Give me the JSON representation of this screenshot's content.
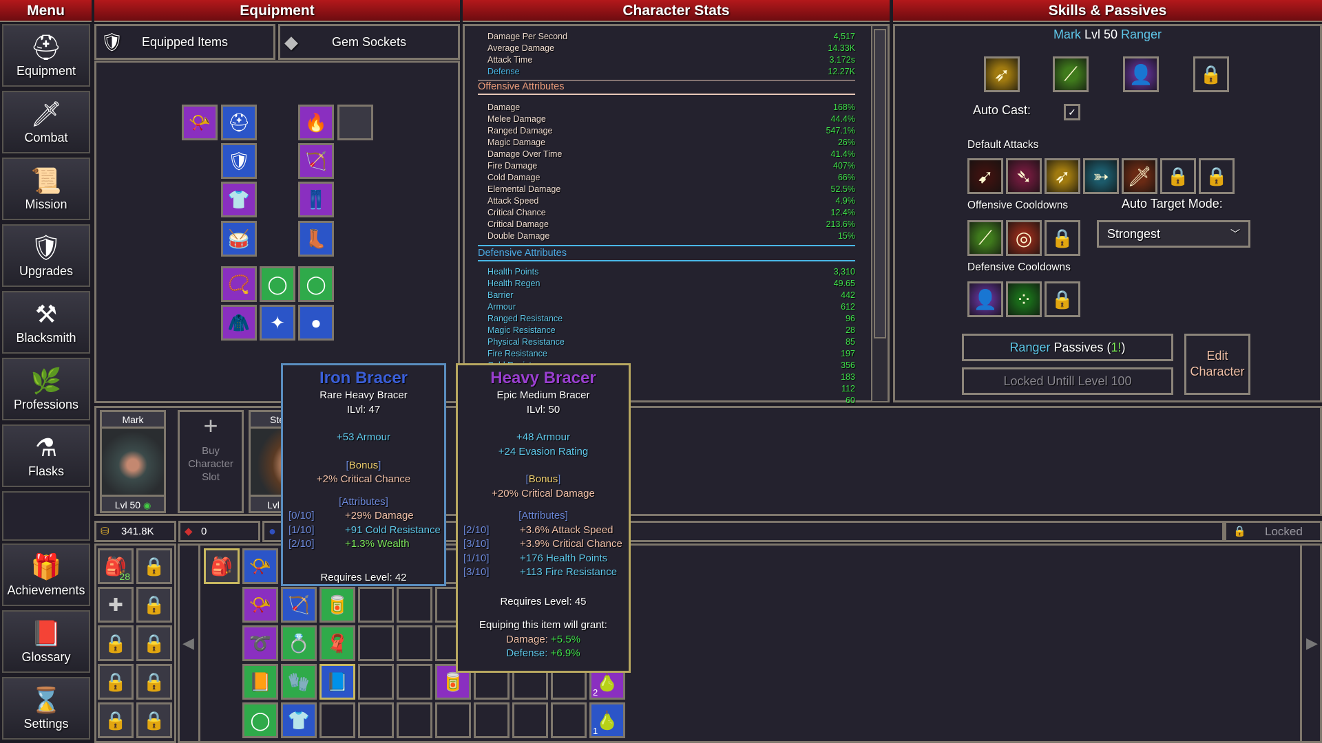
{
  "headers": {
    "menu": "Menu",
    "equipment": "Equipment",
    "stats": "Character Stats",
    "skills": "Skills & Passives"
  },
  "menu": [
    {
      "label": "Equipment",
      "icon": "helmet-icon",
      "glyph": "⛑"
    },
    {
      "label": "Combat",
      "icon": "sword-icon",
      "glyph": "🗡"
    },
    {
      "label": "Mission",
      "icon": "scroll-icon",
      "glyph": "📜"
    },
    {
      "label": "Upgrades",
      "icon": "shield-icon",
      "glyph": "🛡"
    },
    {
      "label": "Blacksmith",
      "icon": "anvil-icon",
      "glyph": "⚒"
    },
    {
      "label": "Professions",
      "icon": "plant-icon",
      "glyph": "🌿"
    },
    {
      "label": "Flasks",
      "icon": "flask-icon",
      "glyph": "⚗"
    },
    {
      "label": "",
      "icon": "empty-slot",
      "glyph": ""
    },
    {
      "label": "Achievements",
      "icon": "chest-icon",
      "glyph": "🎁"
    },
    {
      "label": "Glossary",
      "icon": "book-icon",
      "glyph": "📕"
    },
    {
      "label": "Settings",
      "icon": "hourglass-icon",
      "glyph": "⌛"
    }
  ],
  "tabs": {
    "equipped": "Equipped Items",
    "gems": "Gem Sockets"
  },
  "equipped_slots": [
    {
      "item": "horn-icon",
      "glyph": "📯",
      "rarity": "#8a2fc0"
    },
    {
      "item": "helmet-icon",
      "glyph": "⛑",
      "rarity": "#2b55c8"
    },
    {
      "item": "fire-mask-icon",
      "glyph": "🔥",
      "rarity": "#8a2fc0"
    },
    {
      "item": "empty-gem-slot",
      "glyph": "",
      "rarity": "#3a3944"
    },
    {
      "item": "pauldron-icon",
      "glyph": "🛡",
      "rarity": "#2b55c8"
    },
    {
      "item": "bracer-icon",
      "glyph": "🏹",
      "rarity": "#8a2fc0"
    },
    {
      "item": "chest-armor-icon",
      "glyph": "👕",
      "rarity": "#8a2fc0"
    },
    {
      "item": "pants-icon",
      "glyph": "👖",
      "rarity": "#8a2fc0"
    },
    {
      "item": "belt-icon",
      "glyph": "🥁",
      "rarity": "#2b55c8"
    },
    {
      "item": "boots-icon",
      "glyph": "👢",
      "rarity": "#2b55c8"
    },
    {
      "item": "amulet-icon",
      "glyph": "📿",
      "rarity": "#8a2fc0"
    },
    {
      "item": "ring-icon",
      "glyph": "◯",
      "rarity": "#2faa4a"
    },
    {
      "item": "ring-icon",
      "glyph": "◯",
      "rarity": "#2faa4a"
    },
    {
      "item": "cloak-icon",
      "glyph": "🧥",
      "rarity": "#8a2fc0"
    },
    {
      "item": "compass-icon",
      "glyph": "✦",
      "rarity": "#2b55c8"
    },
    {
      "item": "orb-icon",
      "glyph": "●",
      "rarity": "#2b55c8"
    }
  ],
  "stats": {
    "summary": [
      {
        "label": "Damage Per Second",
        "value": "4,517"
      },
      {
        "label": "Average Damage",
        "value": "14.33K"
      },
      {
        "label": "Attack Time",
        "value": "3.172s"
      },
      {
        "label": "Defense",
        "value": "12.27K"
      }
    ],
    "offensive_title": "Offensive Attributes",
    "offensive": [
      {
        "label": "Damage",
        "value": "168%"
      },
      {
        "label": "Melee Damage",
        "value": "44.4%"
      },
      {
        "label": "Ranged Damage",
        "value": "547.1%"
      },
      {
        "label": "Magic Damage",
        "value": "26%"
      },
      {
        "label": "Damage Over Time",
        "value": "41.4%"
      },
      {
        "label": "Fire Damage",
        "value": "407%"
      },
      {
        "label": "Cold Damage",
        "value": "66%"
      },
      {
        "label": "Elemental Damage",
        "value": "52.5%"
      },
      {
        "label": "Attack Speed",
        "value": "4.9%"
      },
      {
        "label": "Critical Chance",
        "value": "12.4%"
      },
      {
        "label": "Critical Damage",
        "value": "213.6%"
      },
      {
        "label": "Double Damage",
        "value": "15%"
      }
    ],
    "defensive_title": "Defensive Attributes",
    "defensive": [
      {
        "label": "Health Points",
        "value": "3,310"
      },
      {
        "label": "Health Regen",
        "value": "49.65"
      },
      {
        "label": "Barrier",
        "value": "442"
      },
      {
        "label": "Armour",
        "value": "612"
      },
      {
        "label": "Ranged Resistance",
        "value": "96"
      },
      {
        "label": "Magic Resistance",
        "value": "28"
      },
      {
        "label": "Physical Resistance",
        "value": "85"
      },
      {
        "label": "Fire Resistance",
        "value": "197"
      },
      {
        "label": "Cold Resistance",
        "value": "356"
      },
      {
        "label": "",
        "value": "183"
      },
      {
        "label": "",
        "value": "112"
      },
      {
        "label": "",
        "value": "60"
      }
    ]
  },
  "skills": {
    "name": "Mark",
    "level": "Lvl 50",
    "class": "Ranger",
    "active": [
      {
        "icon": "golden-arrow-icon",
        "glyph": "➶",
        "bg": "#a07a10"
      },
      {
        "icon": "green-blade-icon",
        "glyph": "⟋",
        "bg": "#3f7a1c"
      },
      {
        "icon": "hooded-figure-icon",
        "glyph": "👤",
        "bg": "#5a2f8a"
      },
      {
        "icon": "lock-icon",
        "glyph": "🔒",
        "bg": ""
      }
    ],
    "auto_cast_label": "Auto Cast:",
    "auto_cast": true,
    "default_attacks_label": "Default Attacks",
    "default_attacks": [
      {
        "icon": "arrows-icon",
        "glyph": "➹",
        "bg": "#3a1210"
      },
      {
        "icon": "blood-arrow-icon",
        "glyph": "➴",
        "bg": "#6a1a3a"
      },
      {
        "icon": "golden-arrow-icon",
        "glyph": "➶",
        "bg": "#a07a10"
      },
      {
        "icon": "ice-arrow-icon",
        "glyph": "➳",
        "bg": "#1c5a6a"
      },
      {
        "icon": "flaming-sword-icon",
        "glyph": "🗡",
        "bg": "#6a2a14"
      },
      {
        "icon": "lock-icon",
        "glyph": "🔒",
        "bg": ""
      },
      {
        "icon": "lock-icon",
        "glyph": "🔒",
        "bg": ""
      }
    ],
    "offensive_cd_label": "Offensive Cooldowns",
    "offensive_cd": [
      {
        "icon": "green-blade-icon",
        "glyph": "⟋",
        "bg": "#3f7a1c"
      },
      {
        "icon": "target-icon",
        "glyph": "◎",
        "bg": "#8a2a1a"
      },
      {
        "icon": "lock-icon",
        "glyph": "🔒",
        "bg": ""
      }
    ],
    "auto_target_label": "Auto Target Mode:",
    "auto_target_value": "Strongest",
    "defensive_cd_label": "Defensive Cooldowns",
    "defensive_cd": [
      {
        "icon": "hooded-figure-icon",
        "glyph": "👤",
        "bg": "#5a2f8a"
      },
      {
        "icon": "poison-bubbles-icon",
        "glyph": "⁘",
        "bg": "#1a6a1a"
      },
      {
        "icon": "lock-icon",
        "glyph": "🔒",
        "bg": ""
      }
    ],
    "passives_class": "Ranger",
    "passives_label": "Passives",
    "passives_count": "1!",
    "locked_label": "Locked Untill Level 100",
    "edit_label_1": "Edit",
    "edit_label_2": "Character"
  },
  "characters": [
    {
      "name": "Mark",
      "level": "Lvl 50",
      "portrait": "hooded-ranger-portrait"
    },
    {
      "buy_label_1": "Buy",
      "buy_label_2": "Character",
      "buy_label_3": "Slot"
    },
    {
      "name": "Ste",
      "level": "Lvl",
      "portrait": "brown-haired-portrait"
    }
  ],
  "currency": {
    "gold": "341.8K",
    "gems": "0",
    "locked_label": "Locked"
  },
  "bags": [
    {
      "icon": "backpack-icon",
      "glyph": "🎒",
      "count": "28"
    },
    {
      "icon": "lock-icon",
      "glyph": "🔒"
    },
    {
      "icon": "plus-icon",
      "glyph": "✚"
    },
    {
      "icon": "lock-icon",
      "glyph": "🔒"
    },
    {
      "icon": "lock-icon",
      "glyph": "🔒"
    },
    {
      "icon": "lock-icon",
      "glyph": "🔒"
    },
    {
      "icon": "lock-icon",
      "glyph": "🔒"
    },
    {
      "icon": "lock-icon",
      "glyph": "🔒"
    },
    {
      "icon": "lock-icon",
      "glyph": "🔒"
    },
    {
      "icon": "lock-icon",
      "glyph": "🔒"
    }
  ],
  "inventory": [
    {
      "row": 0,
      "col": 0,
      "icon": "backpack-icon",
      "glyph": "🎒",
      "rarity": "#3a3944",
      "selected": true
    },
    {
      "row": 0,
      "col": 1,
      "icon": "horn-icon",
      "glyph": "📯",
      "rarity": "#2b55c8"
    },
    {
      "row": 1,
      "col": 1,
      "icon": "horn-icon",
      "glyph": "📯",
      "rarity": "#8a2fc0"
    },
    {
      "row": 1,
      "col": 2,
      "icon": "crossbow-icon",
      "glyph": "🏹",
      "rarity": "#2b55c8"
    },
    {
      "row": 1,
      "col": 3,
      "icon": "bracer-icon",
      "glyph": "🥫",
      "rarity": "#2faa4a"
    },
    {
      "row": 2,
      "col": 1,
      "icon": "whip-icon",
      "glyph": "➰",
      "rarity": "#8a2fc0"
    },
    {
      "row": 2,
      "col": 2,
      "icon": "ring-icon",
      "glyph": "💍",
      "rarity": "#2faa4a"
    },
    {
      "row": 2,
      "col": 3,
      "icon": "cape-icon",
      "glyph": "🧣",
      "rarity": "#2faa4a"
    },
    {
      "row": 3,
      "col": 1,
      "icon": "book-icon",
      "glyph": "📙",
      "rarity": "#2faa4a"
    },
    {
      "row": 3,
      "col": 2,
      "icon": "gauntlet-icon",
      "glyph": "🧤",
      "rarity": "#2faa4a"
    },
    {
      "row": 3,
      "col": 3,
      "icon": "tome-icon",
      "glyph": "📘",
      "rarity": "#2b55c8",
      "selected": true
    },
    {
      "row": 3,
      "col": 6,
      "icon": "bracer-icon",
      "glyph": "🥫",
      "rarity": "#8a2fc0"
    },
    {
      "row": 3,
      "col": 10,
      "icon": "potion-icon",
      "glyph": "🍐",
      "rarity": "#8a2fc0",
      "count": "2"
    },
    {
      "row": 4,
      "col": 1,
      "icon": "ring-icon",
      "glyph": "◯",
      "rarity": "#2faa4a"
    },
    {
      "row": 4,
      "col": 2,
      "icon": "armor-icon",
      "glyph": "👕",
      "rarity": "#2b55c8"
    },
    {
      "row": 4,
      "col": 10,
      "icon": "potion-icon",
      "glyph": "🍐",
      "rarity": "#2b55c8",
      "count": "1"
    }
  ],
  "tooltips": [
    {
      "title": "Iron Bracer",
      "title_color": "#3b5fd8",
      "border": "#5a8ec0",
      "subtitle": "Rare Heavy Bracer",
      "ilvl": "ILvl: 47",
      "base": [
        "+53 Armour"
      ],
      "bonus_label": "Bonus",
      "bonus": "+2% Critical Chance",
      "attributes_label": "Attributes",
      "attributes": [
        {
          "tier": "[0/10]",
          "text": "+29% Damage",
          "color": "#f0c0a8"
        },
        {
          "tier": "[1/10]",
          "text": "+91 Cold Resistance",
          "color": "#5fc8ea"
        },
        {
          "tier": "[2/10]",
          "text": "+1.3% Wealth",
          "color": "#7ce85a"
        }
      ],
      "requires": "Requires Level: 42"
    },
    {
      "title": "Heavy Bracer",
      "title_color": "#9a3fd0",
      "border": "#b8a860",
      "subtitle": "Epic Medium Bracer",
      "ilvl": "ILvl: 50",
      "base": [
        "+48 Armour",
        "+24 Evasion Rating"
      ],
      "bonus_label": "Bonus",
      "bonus": "+20% Critical Damage",
      "attributes_label": "Attributes",
      "attributes": [
        {
          "tier": "[2/10]",
          "text": "+3.6% Attack Speed",
          "color": "#f0c0a8"
        },
        {
          "tier": "[3/10]",
          "text": "+3.9% Critical Chance",
          "color": "#f0c0a8"
        },
        {
          "tier": "[1/10]",
          "text": "+176 Health Points",
          "color": "#5fc8ea"
        },
        {
          "tier": "[3/10]",
          "text": "+113 Fire Resistance",
          "color": "#5fc8ea"
        }
      ],
      "requires": "Requires Level: 45",
      "grant_label": "Equiping this item will grant:",
      "grant": [
        {
          "label": "Damage:",
          "value": "+5.5%",
          "color": "#f0c0a8"
        },
        {
          "label": "Defense:",
          "value": "+6.9%",
          "color": "#5fc8ea"
        }
      ]
    }
  ],
  "colors": {
    "header_red": "#a3151a",
    "panel": "#24222e",
    "border": "#7e776c",
    "stat_value": "#3fe04a",
    "offensive": "#e89a78",
    "defensive": "#4aa8e0"
  }
}
